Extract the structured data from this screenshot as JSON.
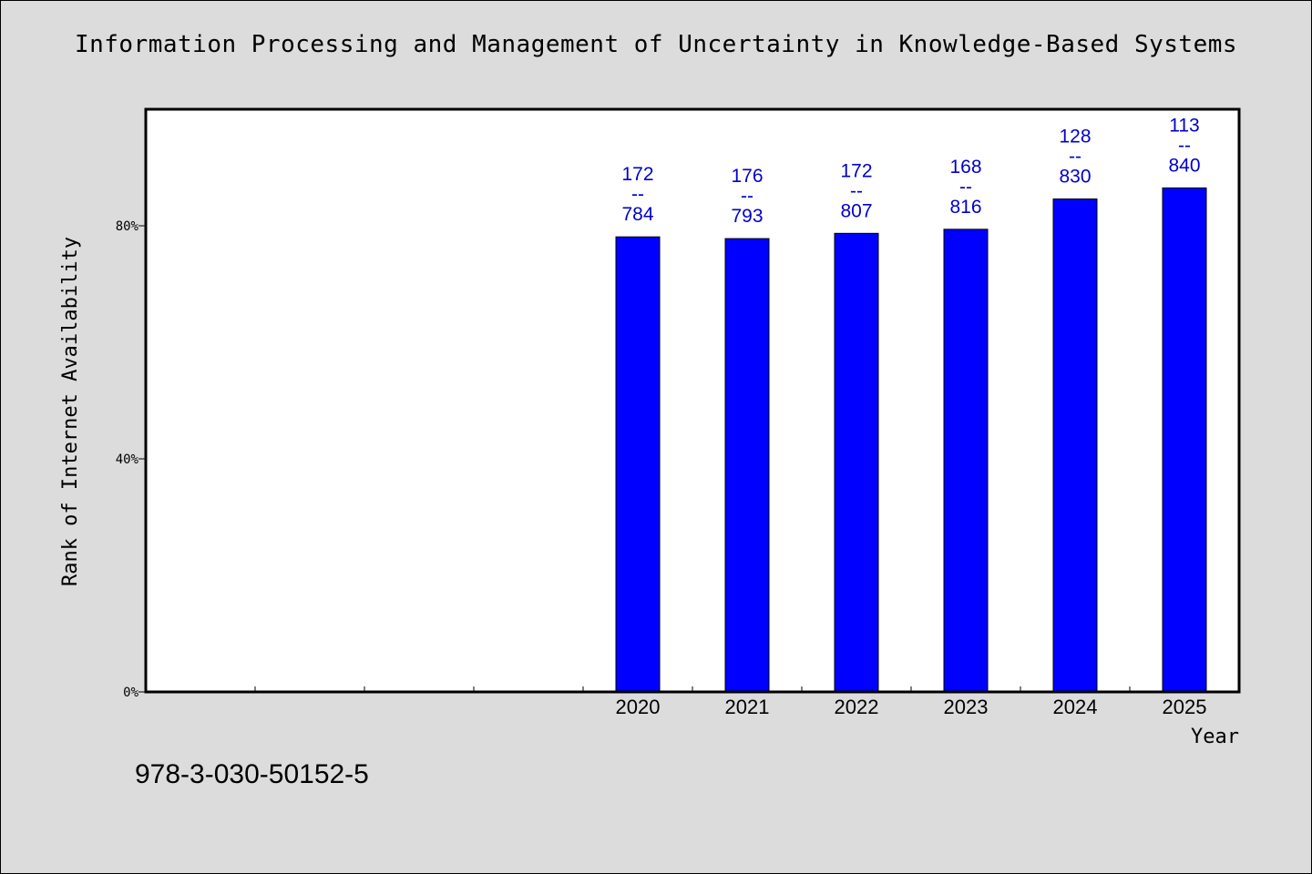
{
  "title": "Information Processing and Management of Uncertainty in Knowledge-Based Systems",
  "isbn": "978-3-030-50152-5",
  "chart_data": {
    "type": "bar",
    "title": "Information Processing and Management of Uncertainty in Knowledge-Based Systems",
    "xlabel": "Year",
    "ylabel": "Rank of Internet Availability",
    "categories": [
      "",
      "",
      "",
      "",
      "2020",
      "2021",
      "2022",
      "2023",
      "2024",
      "2025"
    ],
    "series": [
      {
        "values": [
          null,
          null,
          null,
          null,
          78.1,
          77.8,
          78.7,
          79.4,
          84.6,
          86.5
        ],
        "labels": [
          null,
          null,
          null,
          null,
          [
            "172",
            "--",
            "784"
          ],
          [
            "176",
            "--",
            "793"
          ],
          [
            "172",
            "--",
            "807"
          ],
          [
            "168",
            "--",
            "816"
          ],
          [
            "128",
            "--",
            "830"
          ],
          [
            "113",
            "--",
            "840"
          ]
        ]
      }
    ],
    "ylim": [
      0,
      100
    ],
    "yticks": [
      0,
      40,
      80
    ],
    "ytick_labels": [
      "0%",
      "40%",
      "80%"
    ],
    "grid": false,
    "bar_color": "#0000ff",
    "label_color": "#0000cc",
    "background": "#dcdcdc",
    "plot_background": "#ffffff"
  }
}
